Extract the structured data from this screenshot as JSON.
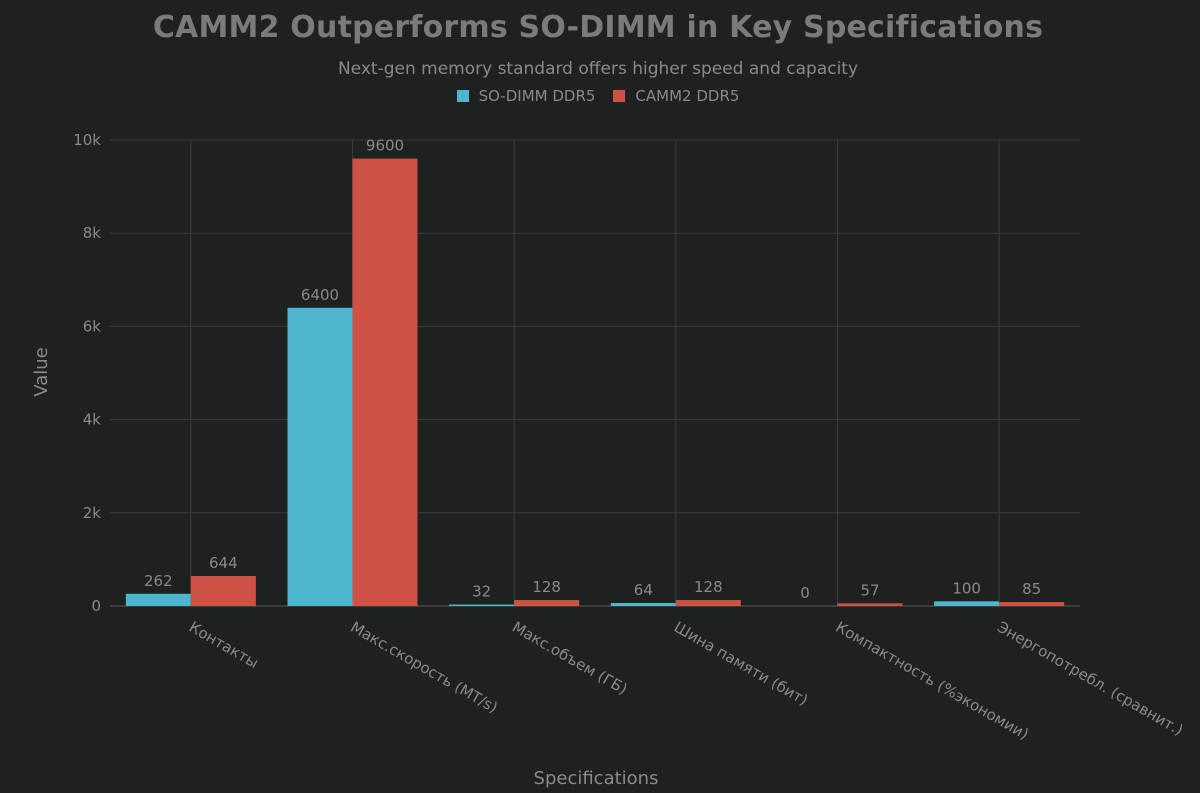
{
  "chart_data": {
    "type": "bar",
    "title": "CAMM2 Outperforms SO-DIMM in Key Specifications",
    "subtitle": "Next-gen memory standard offers higher speed and capacity",
    "xlabel": "Specifications",
    "ylabel": "Value",
    "categories": [
      "Контакты",
      "Макс.скорость (MT/s)",
      "Макс.объем (ГБ)",
      "Шина памяти (бит)",
      "Компактность (%экономии)",
      "Энергопотребл. (сравнит.)"
    ],
    "series": [
      {
        "name": "SO-DIMM DDR5",
        "color": "#4fb6cf",
        "values": [
          262,
          6400,
          32,
          64,
          0,
          100
        ]
      },
      {
        "name": "CAMM2 DDR5",
        "color": "#cd5245",
        "values": [
          644,
          9600,
          128,
          128,
          57,
          85
        ]
      }
    ],
    "ylim": [
      0,
      10000
    ],
    "yticks": [
      0,
      2000,
      4000,
      6000,
      8000,
      10000
    ],
    "ytick_labels": [
      "0",
      "2k",
      "4k",
      "6k",
      "8k",
      "10k"
    ],
    "grid": true,
    "legend_position": "top-center",
    "background": "#1f2020",
    "grid_color": "#3c3d3d"
  }
}
